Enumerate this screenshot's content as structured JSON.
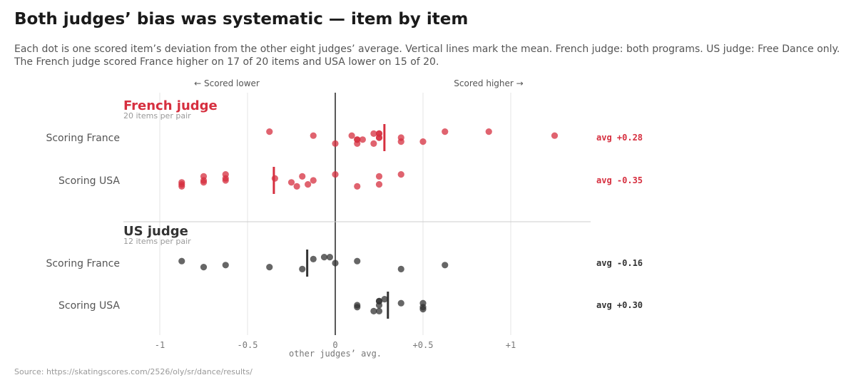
{
  "header": {
    "title": "Both judges’ bias was systematic — item by item",
    "subtitle_line1": "Each dot is one scored item’s deviation from the other eight judges’ average. Vertical lines mark the mean. French judge: both programs. US judge: Free Dance only.",
    "subtitle_line2": "The French judge scored France higher on 17 of 20 items and USA lower on 15 of 20."
  },
  "footer": {
    "source": "Source: https://skatingscores.com/2526/oly/sr/dance/results/"
  },
  "colors": {
    "french": "#d62f3f",
    "us": "#333333",
    "zero_line": "#222222",
    "grid": "#e6e6e6"
  },
  "chart_data": {
    "type": "scatter",
    "title": "Both judges’ bias was systematic — item by item",
    "xlabel": "other judges’ avg.",
    "xlim": [
      -1.2,
      1.45
    ],
    "x_ticks": [
      {
        "value": -1,
        "label": "-1"
      },
      {
        "value": -0.5,
        "label": "-0.5"
      },
      {
        "value": 0,
        "label": "0"
      },
      {
        "value": 0.5,
        "label": "+0.5"
      },
      {
        "value": 1,
        "label": "+1"
      }
    ],
    "direction_labels": {
      "lower": "← Scored lower",
      "higher": "Scored higher →"
    },
    "panels": [
      {
        "name": "French judge",
        "note": "20 items per pair",
        "color_key": "french",
        "rows": [
          {
            "label": "Scoring France",
            "mean": 0.28,
            "mean_label": "avg +0.28",
            "values": [
              -0.375,
              -0.125,
              0.125,
              0.125,
              0.25,
              0.25,
              0.5,
              0.875,
              1.25,
              0.125,
              0.219,
              0.25,
              0.25,
              0.375,
              0.625,
              0.094,
              0.156,
              0,
              0.219,
              0.375
            ]
          },
          {
            "label": "Scoring USA",
            "mean": -0.35,
            "mean_label": "avg -0.35",
            "values": [
              -0.75,
              0.125,
              0.25,
              -0.125,
              -0.875,
              -0.625,
              -0.344,
              -0.25,
              -0.219,
              -0.75,
              -0.75,
              0.25,
              0,
              -0.625,
              -0.875,
              -0.875,
              -0.188,
              -0.625,
              -0.156,
              0.375
            ]
          }
        ]
      },
      {
        "name": "US judge",
        "note": "12 items per pair",
        "color_key": "us",
        "rows": [
          {
            "label": "Scoring France",
            "mean": -0.16,
            "mean_label": "avg -0.16",
            "values": [
              -0.375,
              -0.063,
              -0.875,
              0.625,
              -0.188,
              -0.125,
              0,
              -0.75,
              -0.031,
              0.125,
              -0.625,
              0.375
            ]
          },
          {
            "label": "Scoring USA",
            "mean": 0.3,
            "mean_label": "avg +0.30",
            "values": [
              0.5,
              0.5,
              0.219,
              0.25,
              0.25,
              0.5,
              0.281,
              0.375,
              0.125,
              0.25,
              0.25,
              0.125
            ]
          }
        ]
      }
    ]
  }
}
